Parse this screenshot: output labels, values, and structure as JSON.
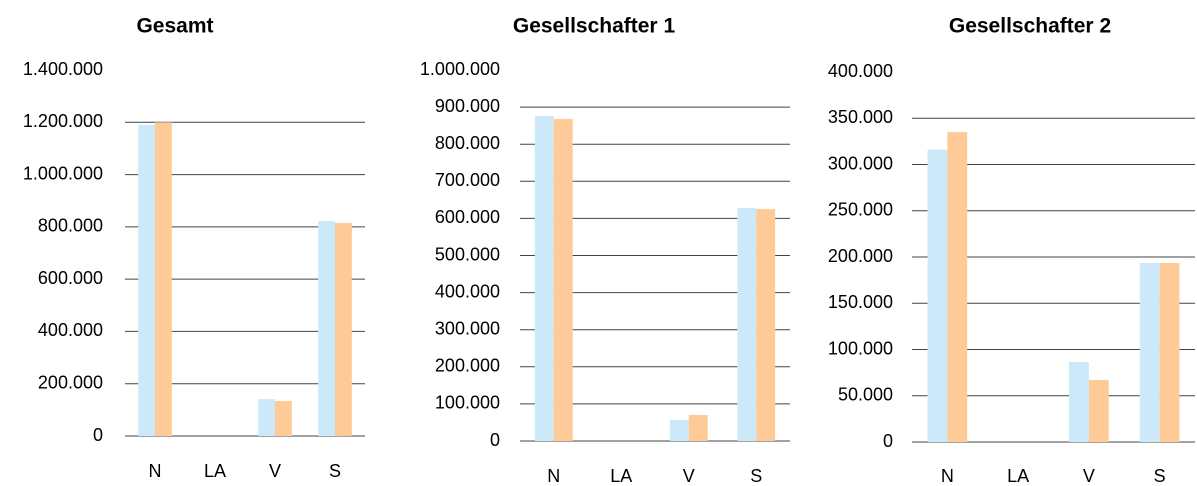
{
  "chart_data": [
    {
      "type": "bar",
      "title": "Gesamt",
      "categories": [
        "N",
        "LA",
        "V",
        "S"
      ],
      "series": [
        {
          "color": "#cce9fa",
          "values": [
            1190000,
            0,
            141000,
            822000
          ]
        },
        {
          "color": "#fdca98",
          "values": [
            1200000,
            0,
            134000,
            815000
          ]
        }
      ],
      "ylim": [
        0,
        1400000
      ],
      "yticks": [
        0,
        {
          "value": 200000,
          "label": "200.000"
        },
        {
          "value": 400000,
          "label": "400.000"
        },
        {
          "value": 600000,
          "label": "600.000"
        },
        {
          "value": 800000,
          "label": "800.000"
        },
        {
          "value": 1000000,
          "label": "1.000.000"
        },
        {
          "value": 1200000,
          "label": "1.200.000"
        },
        {
          "value": 1400000,
          "label": "1.400.000"
        }
      ],
      "grid": true
    },
    {
      "type": "bar",
      "title": "Gesellschafter 1",
      "categories": [
        "N",
        "LA",
        "V",
        "S"
      ],
      "series": [
        {
          "color": "#cce9fa",
          "values": [
            876000,
            0,
            57000,
            628000
          ]
        },
        {
          "color": "#fdca98",
          "values": [
            868000,
            0,
            70000,
            625000
          ]
        }
      ],
      "ylim": [
        0,
        1000000
      ],
      "yticks": [
        0,
        {
          "value": 100000,
          "label": "100.000"
        },
        {
          "value": 200000,
          "label": "200.000"
        },
        {
          "value": 300000,
          "label": "300.000"
        },
        {
          "value": 400000,
          "label": "400.000"
        },
        {
          "value": 500000,
          "label": "500.000"
        },
        {
          "value": 600000,
          "label": "600.000"
        },
        {
          "value": 700000,
          "label": "700.000"
        },
        {
          "value": 800000,
          "label": "800.000"
        },
        {
          "value": 900000,
          "label": "900.000"
        },
        {
          "value": 1000000,
          "label": "1.000.000"
        }
      ],
      "grid": true
    },
    {
      "type": "bar",
      "title": "Gesellschafter 2",
      "categories": [
        "N",
        "LA",
        "V",
        "S"
      ],
      "series": [
        {
          "color": "#cce9fa",
          "values": [
            316000,
            0,
            86500,
            193500
          ]
        },
        {
          "color": "#fdca98",
          "values": [
            335000,
            0,
            67000,
            193500
          ]
        }
      ],
      "ylim": [
        0,
        400000
      ],
      "yticks": [
        0,
        {
          "value": 50000,
          "label": "50.000"
        },
        {
          "value": 100000,
          "label": "100.000"
        },
        {
          "value": 150000,
          "label": "150.000"
        },
        {
          "value": 200000,
          "label": "200.000"
        },
        {
          "value": 250000,
          "label": "250.000"
        },
        {
          "value": 300000,
          "label": "300.000"
        },
        {
          "value": 350000,
          "label": "350.000"
        },
        {
          "value": 400000,
          "label": "400.000"
        }
      ],
      "grid": true
    }
  ]
}
